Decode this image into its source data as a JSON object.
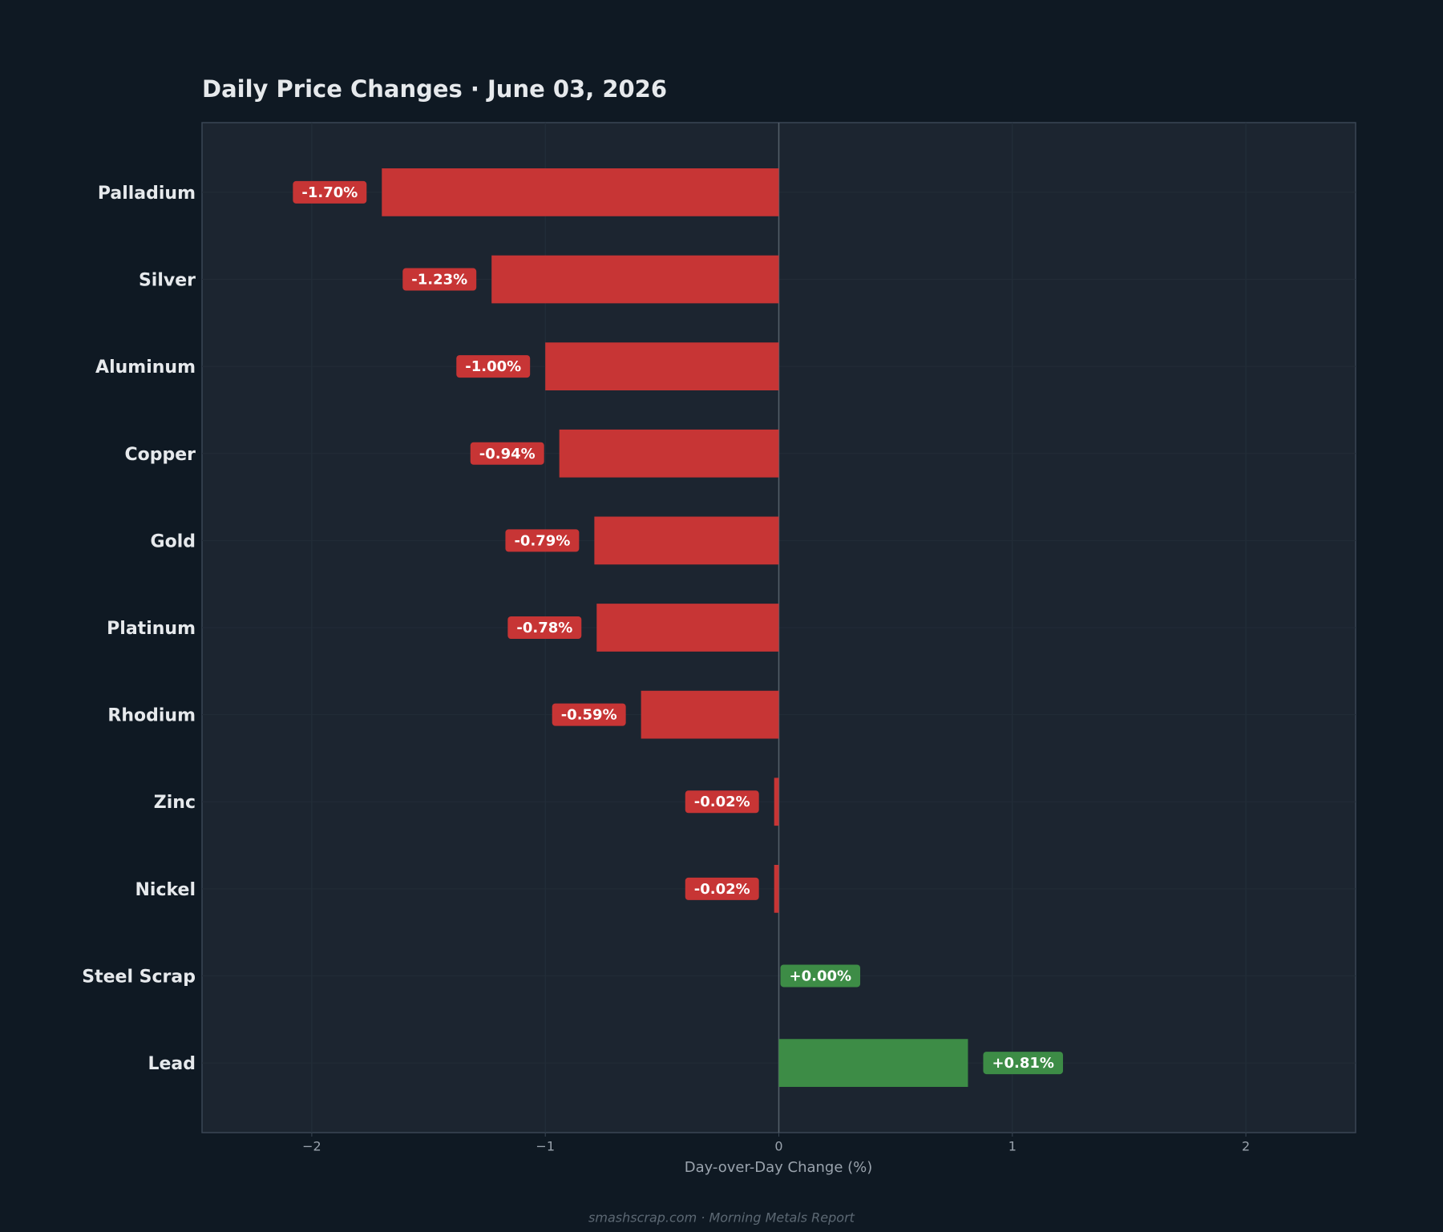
{
  "chart_data": {
    "type": "bar",
    "orientation": "horizontal",
    "title": "Daily Price Changes  ·  June 03, 2026",
    "x_label": "Day-over-Day Change (%)",
    "footer": "smashscrap.com  ·  Morning Metals Report",
    "categories": [
      "Palladium",
      "Silver",
      "Aluminum",
      "Copper",
      "Gold",
      "Platinum",
      "Rhodium",
      "Zinc",
      "Nickel",
      "Steel Scrap",
      "Lead"
    ],
    "values": [
      -1.7,
      -1.23,
      -1.0,
      -0.94,
      -0.79,
      -0.78,
      -0.59,
      -0.02,
      -0.02,
      0.0,
      0.81
    ],
    "value_labels": [
      "-1.70%",
      "-1.23%",
      "-1.00%",
      "-0.94%",
      "-0.79%",
      "-0.78%",
      "-0.59%",
      "-0.02%",
      "-0.02%",
      "+0.00%",
      "+0.81%"
    ],
    "colors": {
      "negative": "#c73535",
      "positive": "#3d8c46"
    },
    "xlim": [
      -2.47,
      2.47
    ],
    "xticks": [
      {
        "value": -2,
        "label": "−2"
      },
      {
        "value": -1,
        "label": "−1"
      },
      0,
      1,
      2
    ],
    "grid": true
  }
}
